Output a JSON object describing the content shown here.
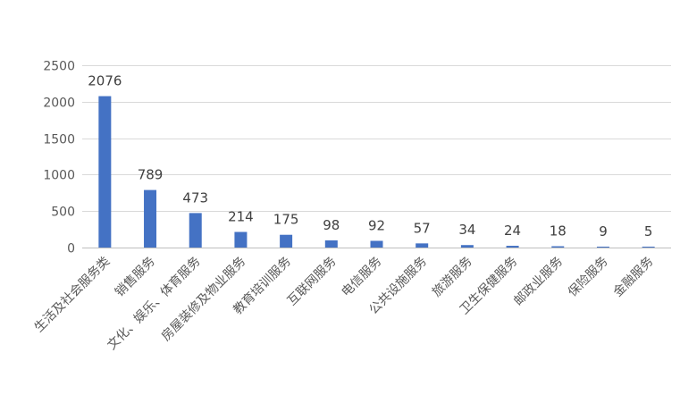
{
  "chart_data": {
    "type": "bar",
    "categories": [
      "生活及社会服务类",
      "销售服务",
      "文化、娱乐、体育服务",
      "房屋装修及物业服务",
      "教育培训服务",
      "互联网服务",
      "电信服务",
      "公共设施服务",
      "旅游服务",
      "卫生保健服务",
      "邮政业服务",
      "保险服务",
      "金融服务"
    ],
    "series": [
      {
        "values": [
          2076,
          789,
          473,
          214,
          175,
          98,
          92,
          57,
          34,
          24,
          18,
          9,
          5
        ],
        "color": "#4472c4"
      }
    ],
    "title": "",
    "xlabel": "",
    "ylabel": "",
    "ylim": [
      0,
      2500
    ],
    "yticks": [
      0,
      500,
      1000,
      1500,
      2000,
      2500
    ],
    "grid": true,
    "legend": "none",
    "data_labels": true
  }
}
